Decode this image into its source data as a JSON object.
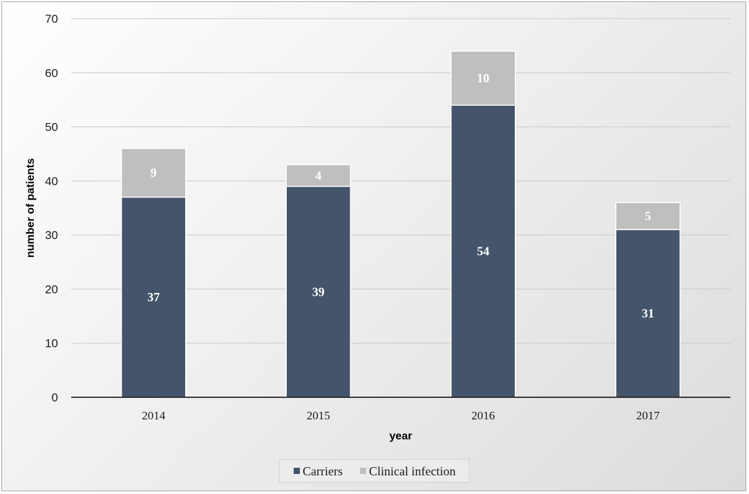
{
  "chart_data": {
    "type": "bar",
    "stacked": true,
    "categories": [
      "2014",
      "2015",
      "2016",
      "2017"
    ],
    "series": [
      {
        "name": "Carriers",
        "values": [
          37,
          39,
          54,
          31
        ],
        "color": "#44546a"
      },
      {
        "name": "Clinical infection",
        "values": [
          9,
          4,
          10,
          5
        ],
        "color": "#bfbfbf"
      }
    ],
    "xlabel": "year",
    "ylabel": "number of patients",
    "ylim": [
      0,
      70
    ],
    "yticks": [
      "0",
      "10",
      "20",
      "30",
      "40",
      "50",
      "60",
      "70"
    ],
    "grid": true,
    "legend_position": "bottom"
  }
}
